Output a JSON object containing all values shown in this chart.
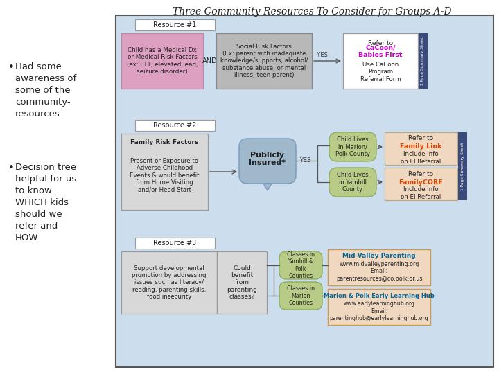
{
  "title": "Three Community Resources To Consider for Groups A-D",
  "title_fontsize": 10,
  "bg_color": "#ffffff",
  "diagram_bg": "#ccdded",
  "diagram_border": "#555555",
  "bullet1": "Had some\nawareness of\nsome of the\ncommunity-\nresources",
  "bullet2": "Decision tree\nhelpful for us\nto know\nWHICH kids\nshould we\nrefer and\nHOW",
  "resource1_label": "Resource #1",
  "resource2_label": "Resource #2",
  "resource3_label": "Resource #3",
  "box1_text": "Child has a Medical Dx\nor Medical Risk Factors\n(ex: FTT, elevated lead,\nseizure disorder)",
  "box1_color": "#dda0c0",
  "box2_text": "Social Risk Factors\n(Ex: parent with inadequate\nknowledge/supports, alcohol/\nsubstance abuse, or mental\nillness; teen parent)",
  "box2_color": "#b8b8b8",
  "cacoon_color": "#cc00cc",
  "box4_bold": "Family Risk Factors",
  "box4_text": "Present or Exposure to\nAdverse Childhood\nEvents & would benefit\nfrom Home Visiting\nand/or Head Start",
  "box4_color": "#d8d8d8",
  "box5_text": "Publicly\nInsured*",
  "box5_color": "#a0b8cc",
  "box6a_text": "Child Lives\nin Marion/\nPolk County",
  "box6b_text": "Child Lives\nin Yamhill\nCounty",
  "box6_color": "#b8cc88",
  "box6_edge": "#88aa55",
  "family_link_color": "#dd4400",
  "box7_color": "#f0d8c0",
  "box8_text": "Support developmental\npromotion by addressing\nissues such as literacy/\nreading, parenting skills,\nfood insecurity",
  "box8_color": "#d8d8d8",
  "box9_text": "Could\nbenefit\nfrom\nparenting\nclasses?",
  "box9_color": "#d8d8d8",
  "box10a_text": "Classes in\nYamhill &\nPolk\nCounties",
  "box10b_text": "Classes in\nMarion\nCounties",
  "box10_color": "#b8cc88",
  "box10_edge": "#88aa55",
  "box11a_title": "Mid-Valley Parenting",
  "box11a_body": "www.midvalleyparenting.org\nEmail:\nparentresources@co.polk.or.us",
  "box11b_title": "Marion & Polk Early Learning Hub",
  "box11b_body": "www.earlylearninghub.org\nEmail:\nparentinghub@earlylearninghub.org",
  "box11_color": "#f0d8c0",
  "link_color": "#006699",
  "sidebar_color": "#3a4a7a",
  "arrow_color": "#555555",
  "text_color": "#222222"
}
